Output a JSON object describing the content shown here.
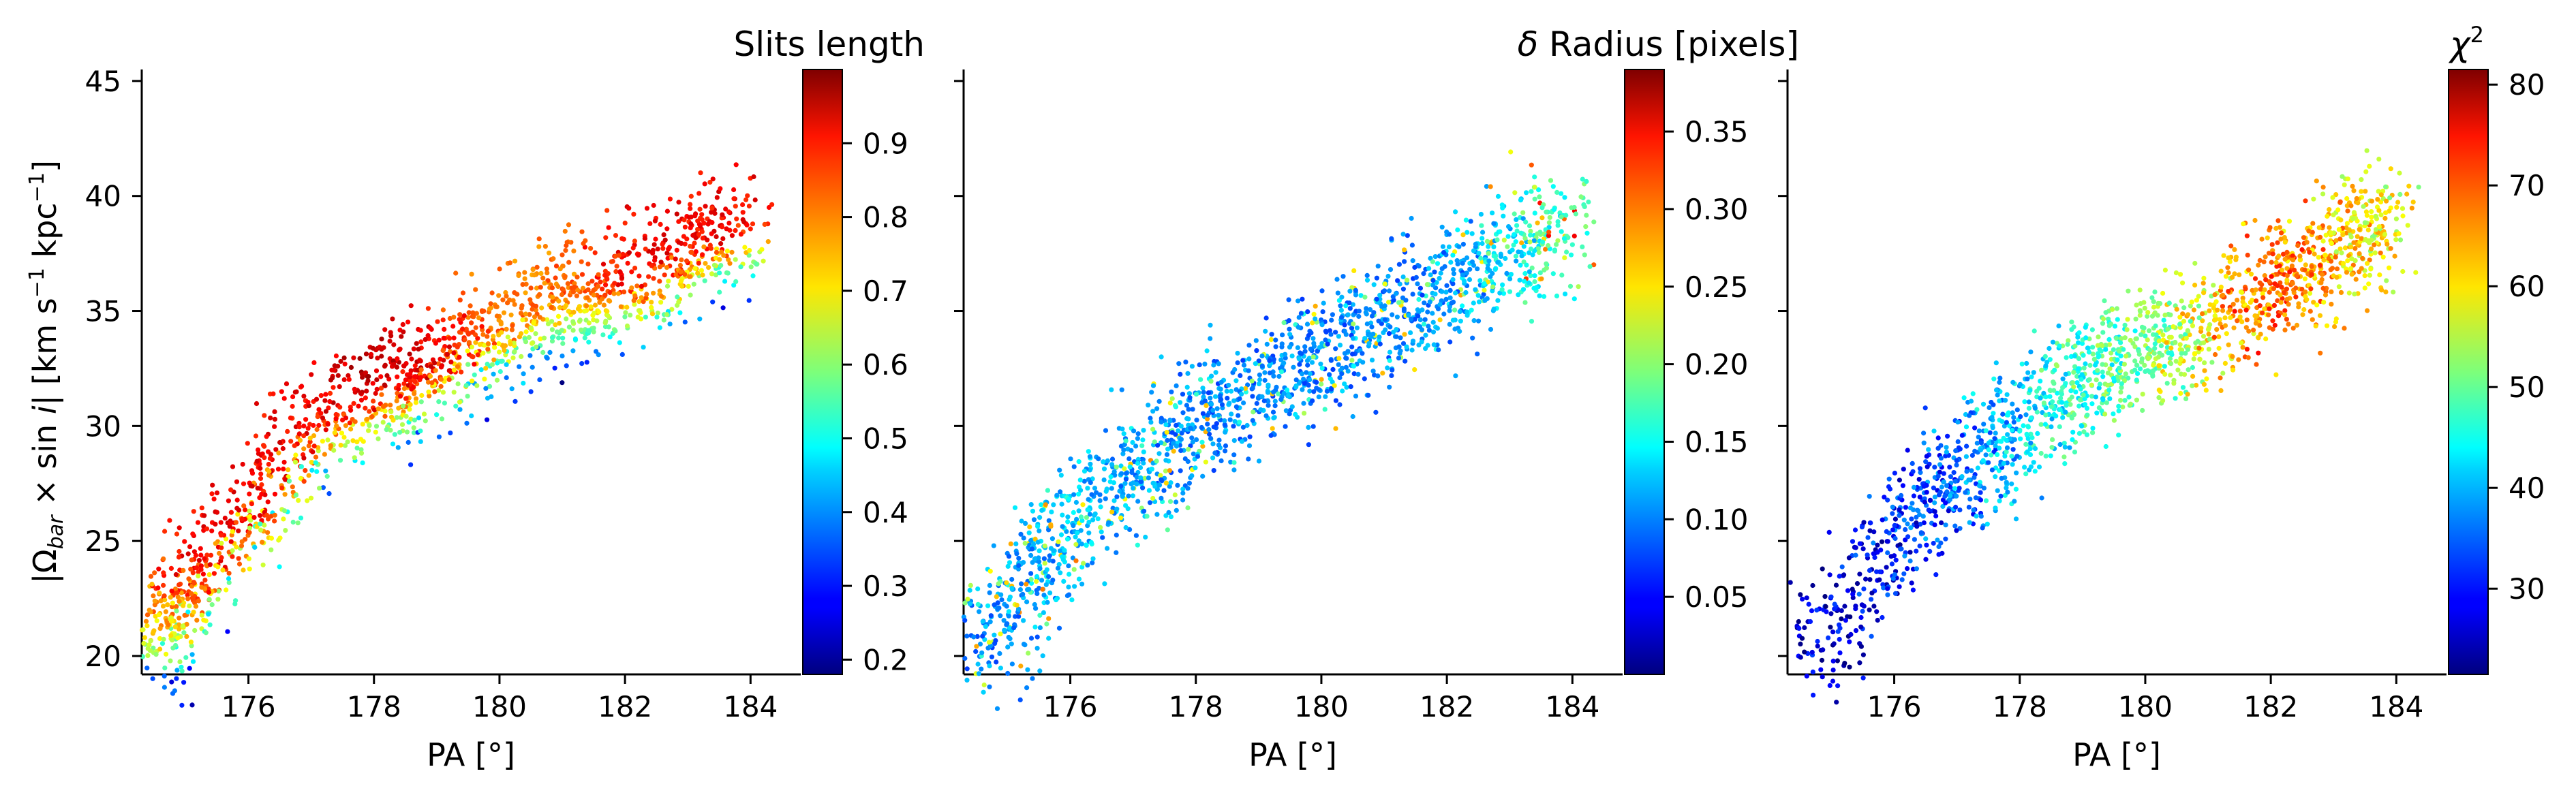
{
  "chart_data": [
    {
      "type": "scatter",
      "xlabel": "PA [°]",
      "ylabel": "|Ω_bar × sin i|   [km s⁻¹ kpc⁻¹]",
      "xlim": [
        174.3,
        184.8
      ],
      "ylim": [
        19.2,
        45.5
      ],
      "xticks": [
        176,
        178,
        180,
        182,
        184
      ],
      "yticks": [
        20,
        25,
        30,
        35,
        40,
        45
      ],
      "colorbar": {
        "label": "Slits length",
        "range": [
          0.18,
          1.0
        ],
        "ticks": [
          0.2,
          0.3,
          0.4,
          0.5,
          0.6,
          0.7,
          0.8,
          0.9
        ],
        "colormap": "jet"
      },
      "color_trend": "high values (red) on upper edge, low values (cyan/green) on lower edge",
      "points_approx": [
        [
          174.5,
          20.1,
          0.7
        ],
        [
          175.0,
          23.0,
          0.9
        ],
        [
          176.0,
          26.0,
          0.9
        ],
        [
          177.0,
          30.0,
          0.9
        ],
        [
          178.0,
          31.5,
          0.95
        ],
        [
          179.0,
          32.5,
          0.9
        ],
        [
          180.0,
          34.0,
          0.8
        ],
        [
          181.0,
          35.5,
          0.8
        ],
        [
          182.0,
          36.0,
          0.9
        ],
        [
          183.0,
          37.5,
          0.9
        ],
        [
          184.0,
          39.0,
          0.9
        ]
      ]
    },
    {
      "type": "scatter",
      "xlabel": "PA [°]",
      "xlim": [
        174.3,
        184.8
      ],
      "ylim": [
        19.2,
        45.5
      ],
      "xticks": [
        176,
        178,
        180,
        182,
        184
      ],
      "colorbar": {
        "label": "δ Radius [pixels]",
        "range": [
          0.0,
          0.39
        ],
        "ticks": [
          0.05,
          0.1,
          0.15,
          0.2,
          0.25,
          0.3,
          0.35
        ],
        "colormap": "jet"
      },
      "color_trend": "mostly low values (blue) with scattered cyan/green/yellow points",
      "points_approx": [
        [
          174.5,
          20.1,
          0.1
        ],
        [
          176.0,
          26.0,
          0.12
        ],
        [
          178.0,
          30.0,
          0.1
        ],
        [
          180.0,
          33.0,
          0.1
        ],
        [
          182.0,
          36.0,
          0.1
        ],
        [
          184.0,
          39.0,
          0.18
        ]
      ]
    },
    {
      "type": "scatter",
      "xlabel": "PA [°]",
      "xlim": [
        174.3,
        184.8
      ],
      "ylim": [
        19.2,
        45.5
      ],
      "xticks": [
        176,
        178,
        180,
        182,
        184
      ],
      "colorbar": {
        "label": "χ²",
        "range": [
          21.5,
          81.5
        ],
        "ticks": [
          30,
          40,
          50,
          60,
          70,
          80
        ],
        "colormap": "jet"
      },
      "color_trend": "increases with PA: blue at low PA, cyan/green middle, yellow/red at high PA",
      "points_approx": [
        [
          174.5,
          20.1,
          25
        ],
        [
          176.0,
          25.0,
          30
        ],
        [
          177.0,
          28.0,
          35
        ],
        [
          178.0,
          30.0,
          42
        ],
        [
          179.0,
          32.0,
          48
        ],
        [
          180.0,
          33.5,
          50
        ],
        [
          181.0,
          34.5,
          60
        ],
        [
          182.0,
          36.0,
          68
        ],
        [
          183.0,
          37.5,
          62
        ],
        [
          184.0,
          39.0,
          57
        ]
      ]
    }
  ]
}
